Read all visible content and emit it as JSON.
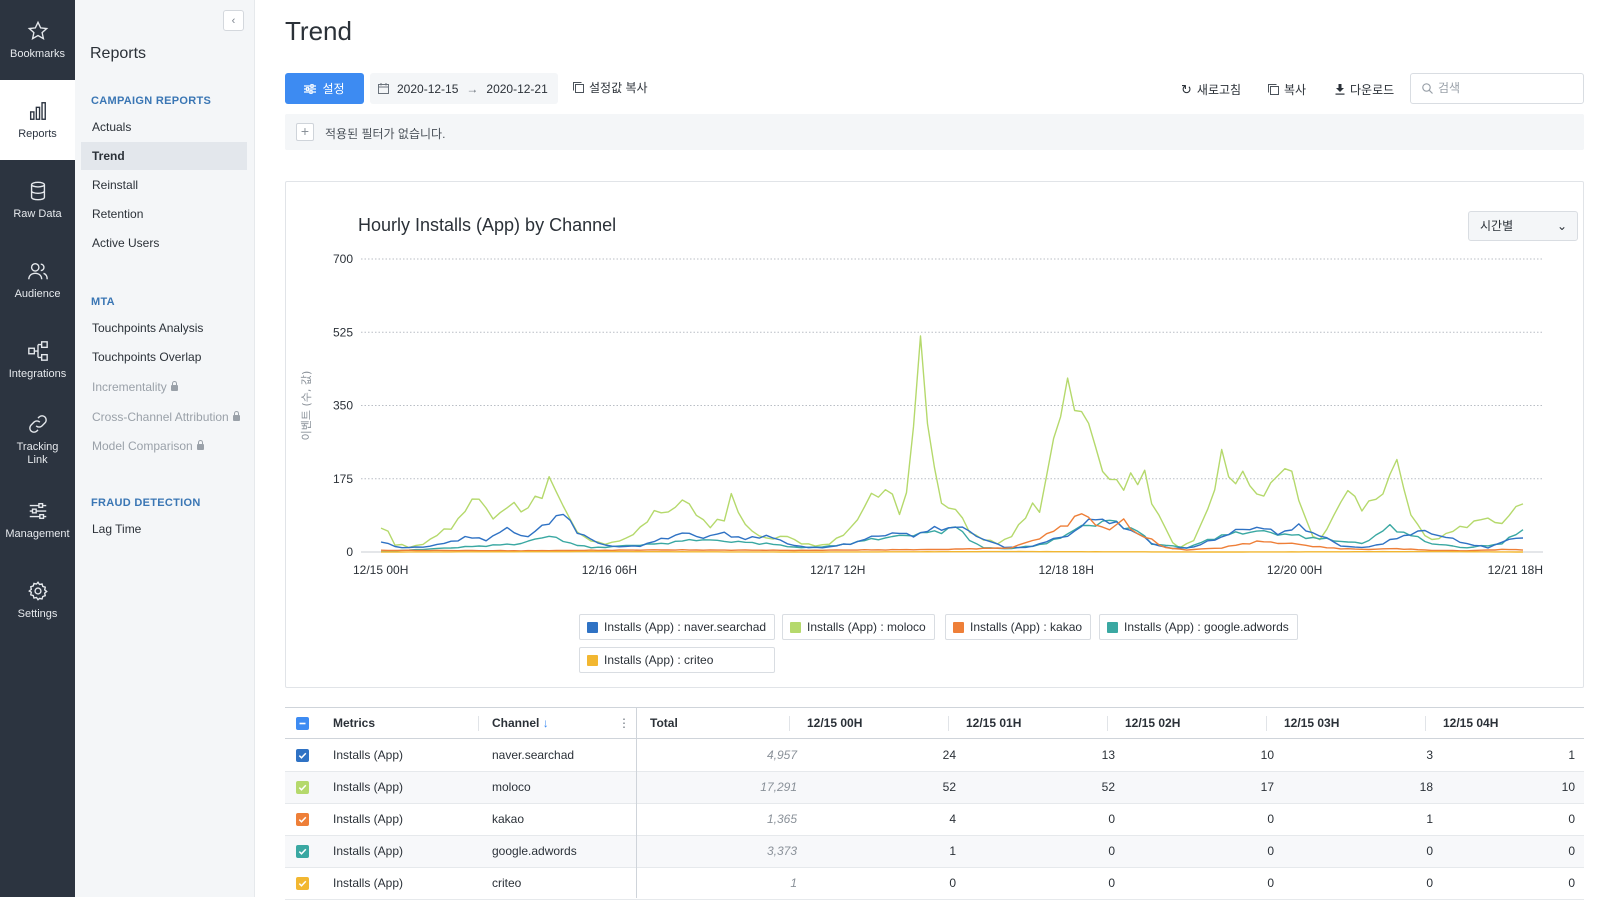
{
  "rail": [
    {
      "label": "Bookmarks",
      "icon": "star-icon"
    },
    {
      "label": "Reports",
      "icon": "bar-chart-icon"
    },
    {
      "label": "Raw Data",
      "icon": "database-icon"
    },
    {
      "label": "Audience",
      "icon": "users-icon"
    },
    {
      "label": "Integrations",
      "icon": "integrations-icon"
    },
    {
      "label": "Tracking Link",
      "icon": "link-icon"
    },
    {
      "label": "Management",
      "icon": "sliders-icon"
    },
    {
      "label": "Settings",
      "icon": "gear-icon"
    }
  ],
  "sidebar": {
    "title": "Reports",
    "sections": [
      {
        "title": "CAMPAIGN REPORTS",
        "items": [
          {
            "label": "Actuals",
            "active": false,
            "locked": false
          },
          {
            "label": "Trend",
            "active": true,
            "locked": false
          },
          {
            "label": "Reinstall",
            "active": false,
            "locked": false
          },
          {
            "label": "Retention",
            "active": false,
            "locked": false
          },
          {
            "label": "Active Users",
            "active": false,
            "locked": false
          }
        ]
      },
      {
        "title": "MTA",
        "items": [
          {
            "label": "Touchpoints Analysis",
            "active": false,
            "locked": false
          },
          {
            "label": "Touchpoints Overlap",
            "active": false,
            "locked": false
          },
          {
            "label": "Incrementality",
            "active": false,
            "locked": true
          },
          {
            "label": "Cross-Channel Attribution",
            "active": false,
            "locked": true
          },
          {
            "label": "Model Comparison",
            "active": false,
            "locked": true
          }
        ]
      },
      {
        "title": "FRAUD DETECTION",
        "items": [
          {
            "label": "Lag Time",
            "active": false,
            "locked": false
          }
        ]
      }
    ]
  },
  "page": {
    "title": "Trend"
  },
  "toolbar": {
    "settings_label": "설정",
    "date_start": "2020-12-15",
    "date_end": "2020-12-21",
    "copy_settings_label": "설정값 복사",
    "refresh_label": "새로고침",
    "copy_label": "복사",
    "download_label": "다운로드",
    "search_placeholder": "검색",
    "accent_color": "#3d8bf2"
  },
  "filter": {
    "empty_text": "적용된 필터가 없습니다."
  },
  "chart": {
    "interval_label": "시간별"
  },
  "chart_data": {
    "type": "line",
    "title": "Hourly Installs (App) by Channel",
    "ylabel": "이벤트 (수, 값)",
    "xlabel": "",
    "ylim": [
      0,
      700
    ],
    "yticks": [
      0,
      175,
      350,
      525,
      700
    ],
    "xticks": [
      "12/15 00H",
      "12/16 06H",
      "12/17 12H",
      "12/18 18H",
      "12/20 00H",
      "12/21 18H"
    ],
    "x_start": "2020-12-15 00H",
    "hours": 163,
    "grid": "horizontal dotted",
    "legend_position": "bottom",
    "series": [
      {
        "name": "Installs (App) : naver.searchad",
        "color": "#2f72c4",
        "keypoints": [
          [
            0,
            24
          ],
          [
            3,
            10
          ],
          [
            6,
            12
          ],
          [
            9,
            20
          ],
          [
            12,
            35
          ],
          [
            15,
            30
          ],
          [
            18,
            55
          ],
          [
            21,
            35
          ],
          [
            24,
            75
          ],
          [
            26,
            90
          ],
          [
            28,
            50
          ],
          [
            31,
            20
          ],
          [
            34,
            12
          ],
          [
            37,
            15
          ],
          [
            40,
            30
          ],
          [
            43,
            45
          ],
          [
            46,
            35
          ],
          [
            49,
            45
          ],
          [
            52,
            30
          ],
          [
            55,
            40
          ],
          [
            58,
            20
          ],
          [
            61,
            10
          ],
          [
            64,
            12
          ],
          [
            67,
            20
          ],
          [
            70,
            35
          ],
          [
            73,
            45
          ],
          [
            76,
            40
          ],
          [
            79,
            55
          ],
          [
            82,
            60
          ],
          [
            84,
            50
          ],
          [
            86,
            30
          ],
          [
            89,
            12
          ],
          [
            92,
            10
          ],
          [
            95,
            25
          ],
          [
            98,
            40
          ],
          [
            100,
            60
          ],
          [
            102,
            85
          ],
          [
            104,
            70
          ],
          [
            106,
            60
          ],
          [
            108,
            45
          ],
          [
            110,
            20
          ],
          [
            113,
            8
          ],
          [
            116,
            12
          ],
          [
            119,
            30
          ],
          [
            122,
            50
          ],
          [
            125,
            60
          ],
          [
            128,
            45
          ],
          [
            131,
            60
          ],
          [
            134,
            40
          ],
          [
            137,
            15
          ],
          [
            140,
            10
          ],
          [
            143,
            20
          ],
          [
            146,
            40
          ],
          [
            149,
            50
          ],
          [
            152,
            35
          ],
          [
            155,
            20
          ],
          [
            158,
            10
          ],
          [
            160,
            25
          ],
          [
            163,
            35
          ]
        ]
      },
      {
        "name": "Installs (App) : moloco",
        "color": "#b5d96c",
        "keypoints": [
          [
            0,
            52
          ],
          [
            1,
            52
          ],
          [
            2,
            17
          ],
          [
            3,
            18
          ],
          [
            4,
            10
          ],
          [
            6,
            20
          ],
          [
            8,
            40
          ],
          [
            10,
            60
          ],
          [
            12,
            100
          ],
          [
            14,
            130
          ],
          [
            15,
            110
          ],
          [
            16,
            80
          ],
          [
            18,
            100
          ],
          [
            19,
            130
          ],
          [
            20,
            95
          ],
          [
            22,
            120
          ],
          [
            23,
            140
          ],
          [
            24,
            180
          ],
          [
            25,
            150
          ],
          [
            26,
            100
          ],
          [
            27,
            80
          ],
          [
            28,
            50
          ],
          [
            30,
            25
          ],
          [
            32,
            20
          ],
          [
            35,
            30
          ],
          [
            37,
            60
          ],
          [
            39,
            90
          ],
          [
            41,
            100
          ],
          [
            43,
            120
          ],
          [
            45,
            95
          ],
          [
            47,
            60
          ],
          [
            49,
            80
          ],
          [
            50,
            140
          ],
          [
            51,
            100
          ],
          [
            52,
            60
          ],
          [
            54,
            40
          ],
          [
            56,
            30
          ],
          [
            58,
            40
          ],
          [
            60,
            20
          ],
          [
            62,
            15
          ],
          [
            64,
            20
          ],
          [
            66,
            40
          ],
          [
            68,
            80
          ],
          [
            70,
            130
          ],
          [
            72,
            150
          ],
          [
            73,
            145
          ],
          [
            74,
            80
          ],
          [
            75,
            150
          ],
          [
            76,
            300
          ],
          [
            77,
            555
          ],
          [
            78,
            280
          ],
          [
            79,
            200
          ],
          [
            80,
            120
          ],
          [
            82,
            100
          ],
          [
            84,
            50
          ],
          [
            86,
            30
          ],
          [
            88,
            20
          ],
          [
            90,
            40
          ],
          [
            92,
            80
          ],
          [
            93,
            120
          ],
          [
            94,
            100
          ],
          [
            95,
            180
          ],
          [
            96,
            250
          ],
          [
            97,
            340
          ],
          [
            98,
            420
          ],
          [
            99,
            360
          ],
          [
            100,
            300
          ],
          [
            101,
            320
          ],
          [
            102,
            250
          ],
          [
            103,
            210
          ],
          [
            104,
            160
          ],
          [
            105,
            170
          ],
          [
            106,
            150
          ],
          [
            107,
            200
          ],
          [
            108,
            160
          ],
          [
            109,
            180
          ],
          [
            110,
            120
          ],
          [
            111,
            90
          ],
          [
            112,
            60
          ],
          [
            113,
            20
          ],
          [
            114,
            10
          ],
          [
            115,
            20
          ],
          [
            116,
            30
          ],
          [
            117,
            60
          ],
          [
            118,
            100
          ],
          [
            119,
            150
          ],
          [
            120,
            260
          ],
          [
            121,
            180
          ],
          [
            122,
            150
          ],
          [
            123,
            200
          ],
          [
            124,
            160
          ],
          [
            125,
            150
          ],
          [
            126,
            120
          ],
          [
            127,
            170
          ],
          [
            128,
            180
          ],
          [
            129,
            220
          ],
          [
            130,
            180
          ],
          [
            131,
            120
          ],
          [
            132,
            80
          ],
          [
            133,
            40
          ],
          [
            134,
            30
          ],
          [
            135,
            50
          ],
          [
            136,
            90
          ],
          [
            137,
            120
          ],
          [
            138,
            160
          ],
          [
            139,
            120
          ],
          [
            140,
            100
          ],
          [
            141,
            120
          ],
          [
            142,
            140
          ],
          [
            143,
            130
          ],
          [
            144,
            180
          ],
          [
            145,
            220
          ],
          [
            146,
            160
          ],
          [
            147,
            90
          ],
          [
            148,
            60
          ],
          [
            149,
            40
          ],
          [
            150,
            30
          ],
          [
            152,
            40
          ],
          [
            154,
            60
          ],
          [
            156,
            70
          ],
          [
            158,
            80
          ],
          [
            160,
            70
          ],
          [
            161,
            80
          ],
          [
            162,
            110
          ],
          [
            163,
            115
          ]
        ]
      },
      {
        "name": "Installs (App) : kakao",
        "color": "#ee7f38",
        "keypoints": [
          [
            0,
            4
          ],
          [
            20,
            3
          ],
          [
            40,
            5
          ],
          [
            60,
            4
          ],
          [
            80,
            6
          ],
          [
            90,
            10
          ],
          [
            95,
            40
          ],
          [
            98,
            70
          ],
          [
            100,
            90
          ],
          [
            102,
            70
          ],
          [
            104,
            50
          ],
          [
            106,
            80
          ],
          [
            108,
            40
          ],
          [
            110,
            30
          ],
          [
            112,
            10
          ],
          [
            115,
            5
          ],
          [
            120,
            10
          ],
          [
            125,
            25
          ],
          [
            130,
            20
          ],
          [
            135,
            10
          ],
          [
            140,
            6
          ],
          [
            145,
            8
          ],
          [
            150,
            4
          ],
          [
            155,
            3
          ],
          [
            160,
            6
          ],
          [
            163,
            5
          ]
        ]
      },
      {
        "name": "Installs (App) : google.adwords",
        "color": "#3aa8a2",
        "keypoints": [
          [
            0,
            1
          ],
          [
            10,
            10
          ],
          [
            20,
            20
          ],
          [
            24,
            40
          ],
          [
            26,
            25
          ],
          [
            30,
            10
          ],
          [
            40,
            20
          ],
          [
            45,
            30
          ],
          [
            50,
            25
          ],
          [
            55,
            20
          ],
          [
            60,
            10
          ],
          [
            65,
            15
          ],
          [
            70,
            30
          ],
          [
            75,
            40
          ],
          [
            80,
            50
          ],
          [
            82,
            60
          ],
          [
            84,
            30
          ],
          [
            86,
            10
          ],
          [
            90,
            8
          ],
          [
            95,
            20
          ],
          [
            100,
            60
          ],
          [
            104,
            75
          ],
          [
            108,
            50
          ],
          [
            110,
            20
          ],
          [
            115,
            10
          ],
          [
            120,
            40
          ],
          [
            125,
            50
          ],
          [
            130,
            40
          ],
          [
            135,
            30
          ],
          [
            140,
            20
          ],
          [
            144,
            60
          ],
          [
            147,
            40
          ],
          [
            150,
            20
          ],
          [
            155,
            10
          ],
          [
            160,
            20
          ],
          [
            163,
            55
          ]
        ]
      },
      {
        "name": "Installs (App) : criteo",
        "color": "#f2b731",
        "keypoints": [
          [
            0,
            0
          ],
          [
            30,
            1
          ],
          [
            60,
            0
          ],
          [
            90,
            1
          ],
          [
            120,
            0
          ],
          [
            150,
            1
          ],
          [
            163,
            0
          ]
        ]
      }
    ]
  },
  "table": {
    "columns": [
      "Metrics",
      "Channel",
      "Total",
      "12/15 00H",
      "12/15 01H",
      "12/15 02H",
      "12/15 03H",
      "12/15 04H"
    ],
    "sort_indicator": "↓",
    "rows": [
      {
        "color": "#2f72c4",
        "metric": "Installs (App)",
        "channel": "naver.searchad",
        "total": "4,957",
        "values": [
          "24",
          "13",
          "10",
          "3",
          "1"
        ]
      },
      {
        "color": "#b5d96c",
        "metric": "Installs (App)",
        "channel": "moloco",
        "total": "17,291",
        "values": [
          "52",
          "52",
          "17",
          "18",
          "10"
        ]
      },
      {
        "color": "#ee7f38",
        "metric": "Installs (App)",
        "channel": "kakao",
        "total": "1,365",
        "values": [
          "4",
          "0",
          "0",
          "1",
          "0"
        ]
      },
      {
        "color": "#3aa8a2",
        "metric": "Installs (App)",
        "channel": "google.adwords",
        "total": "3,373",
        "values": [
          "1",
          "0",
          "0",
          "0",
          "0"
        ]
      },
      {
        "color": "#f2b731",
        "metric": "Installs (App)",
        "channel": "criteo",
        "total": "1",
        "values": [
          "0",
          "0",
          "0",
          "0",
          "0"
        ]
      }
    ]
  }
}
